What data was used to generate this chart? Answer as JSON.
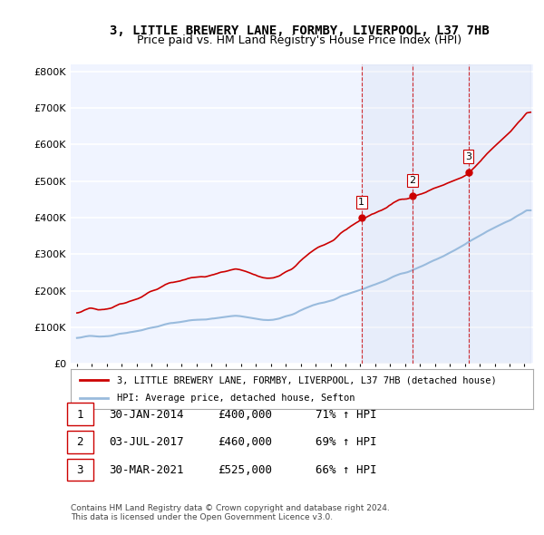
{
  "title": "3, LITTLE BREWERY LANE, FORMBY, LIVERPOOL, L37 7HB",
  "subtitle": "Price paid vs. HM Land Registry's House Price Index (HPI)",
  "ylabel": "",
  "ylim": [
    0,
    820000
  ],
  "yticks": [
    0,
    100000,
    200000,
    300000,
    400000,
    500000,
    600000,
    700000,
    800000
  ],
  "ytick_labels": [
    "£0",
    "£100K",
    "£200K",
    "£300K",
    "£400K",
    "£500K",
    "£600K",
    "£700K",
    "£800K"
  ],
  "background_color": "#ffffff",
  "plot_bg_color": "#f0f4ff",
  "grid_color": "#ffffff",
  "sale_color": "#cc0000",
  "hpi_color": "#99bbdd",
  "vline_color": "#cc0000",
  "sale_dates": [
    "2014-01-30",
    "2017-07-03",
    "2021-03-30"
  ],
  "sale_prices": [
    400000,
    460000,
    525000
  ],
  "sale_labels": [
    "1",
    "2",
    "3"
  ],
  "legend_sale": "3, LITTLE BREWERY LANE, FORMBY, LIVERPOOL, L37 7HB (detached house)",
  "legend_hpi": "HPI: Average price, detached house, Sefton",
  "table_data": [
    [
      "1",
      "30-JAN-2014",
      "£400,000",
      "71% ↑ HPI"
    ],
    [
      "2",
      "03-JUL-2017",
      "£460,000",
      "69% ↑ HPI"
    ],
    [
      "3",
      "30-MAR-2021",
      "£525,000",
      "66% ↑ HPI"
    ]
  ],
  "footnote": "Contains HM Land Registry data © Crown copyright and database right 2024.\nThis data is licensed under the Open Government Licence v3.0.",
  "title_fontsize": 10,
  "subtitle_fontsize": 9,
  "axis_fontsize": 8
}
